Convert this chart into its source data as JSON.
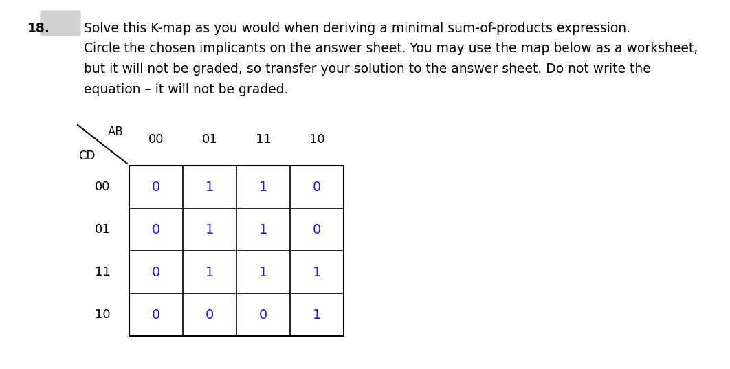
{
  "problem_number": "18.",
  "description_lines": [
    "Solve this K-map as you would when deriving a minimal sum-of-products expression.",
    "Circle the chosen implicants on the answer sheet. You may use the map below as a worksheet,",
    "but it will not be graded, so transfer your solution to the answer sheet. Do not write the",
    "equation – it will not be graded."
  ],
  "ab_label": "AB",
  "cd_label": "CD",
  "col_headers": [
    "00",
    "01",
    "11",
    "10"
  ],
  "row_headers": [
    "00",
    "01",
    "11",
    "10"
  ],
  "kmap_values": [
    [
      0,
      1,
      1,
      0
    ],
    [
      0,
      1,
      1,
      0
    ],
    [
      0,
      1,
      1,
      1
    ],
    [
      0,
      0,
      0,
      1
    ]
  ],
  "text_color": "#1a1aff",
  "header_color": "#000000",
  "grid_color": "#000000",
  "bg_color": "#ffffff",
  "gray_box_color": "#d0d0d0",
  "fig_width": 10.62,
  "fig_height": 5.37,
  "dpi": 100
}
